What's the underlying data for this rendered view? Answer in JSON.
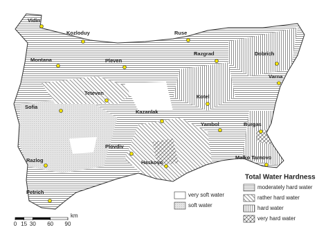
{
  "map": {
    "title": "Total Water Hardness",
    "cities": [
      "Vidin",
      "Kozloduy",
      "Montana",
      "Pleven",
      "Ruse",
      "Razgrad",
      "Dobrich",
      "Varna",
      "Teteven",
      "Sofia",
      "Kotel",
      "Kazanlak",
      "Yambol",
      "Burgas",
      "Plovdiv",
      "Haskovo",
      "Malko Tarnovo",
      "Razlog",
      "Petrich"
    ],
    "legend": [
      "moderately hard water",
      "rather hard water",
      "hard water",
      "very hard water"
    ],
    "legend_soft": [
      "very soft water",
      "soft water"
    ],
    "scale": {
      "ticks": [
        0,
        15,
        30,
        60,
        90
      ],
      "unit": "km"
    }
  }
}
